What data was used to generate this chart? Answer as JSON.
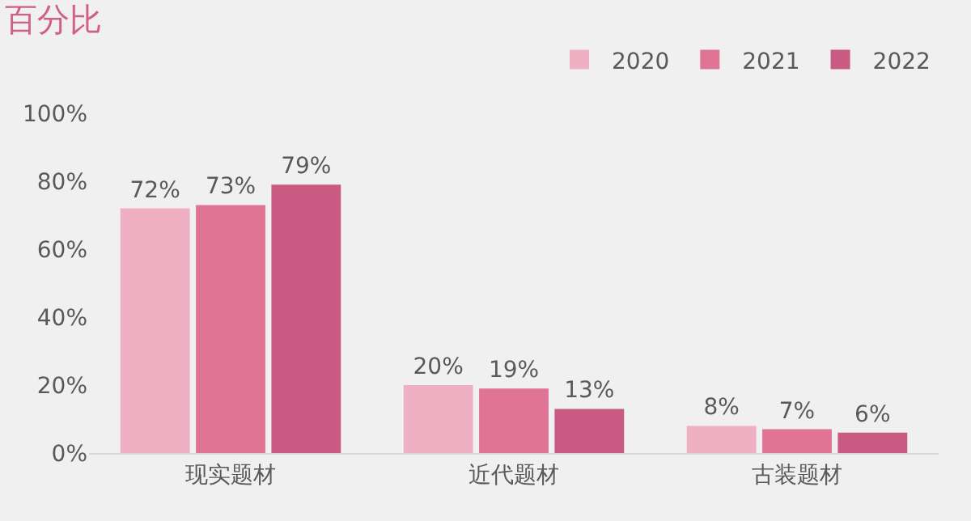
{
  "chart_data": {
    "type": "bar",
    "title": "百分比",
    "categories": [
      "现实题材",
      "近代题材",
      "古装题材"
    ],
    "series": [
      {
        "name": "2020",
        "color": "#efb0c4",
        "values": [
          72,
          20,
          8
        ],
        "value_labels": [
          "72%",
          "20%",
          "8%"
        ]
      },
      {
        "name": "2021",
        "color": "#e07494",
        "values": [
          73,
          19,
          7
        ],
        "value_labels": [
          "73%",
          "19%",
          "7%"
        ]
      },
      {
        "name": "2022",
        "color": "#c95a82",
        "values": [
          79,
          13,
          6
        ],
        "value_labels": [
          "79%",
          "13%",
          "6%"
        ]
      }
    ],
    "ylim": [
      0,
      100
    ],
    "yticks": [
      {
        "value": 0,
        "label": "0%"
      },
      {
        "value": 20,
        "label": "20%"
      },
      {
        "value": 40,
        "label": "40%"
      },
      {
        "value": 60,
        "label": "60%"
      },
      {
        "value": 80,
        "label": "80%"
      },
      {
        "value": 100,
        "label": "100%"
      }
    ],
    "grid": false,
    "legend": "top right"
  }
}
